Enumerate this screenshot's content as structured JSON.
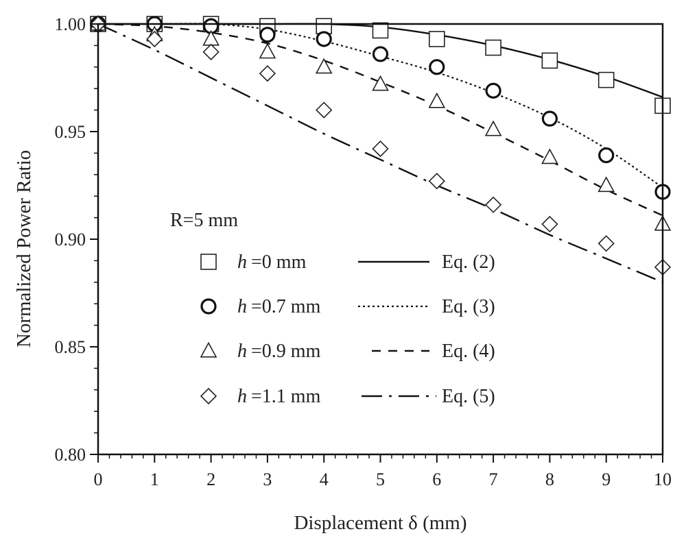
{
  "chart_data": {
    "type": "scatter",
    "xlabel": "Displacement δ (mm)",
    "ylabel": "Normalized Power Ratio",
    "xlim": [
      0,
      10
    ],
    "ylim": [
      0.8,
      1.0
    ],
    "x_ticks": [
      "0",
      "1",
      "2",
      "3",
      "4",
      "5",
      "6",
      "7",
      "8",
      "9",
      "10"
    ],
    "y_ticks": [
      "0.80",
      "0.85",
      "0.90",
      "0.95",
      "1.00"
    ],
    "grid": false,
    "legend_position": "lower-left inside",
    "legend_title": "R=5 mm",
    "x": [
      0,
      1,
      2,
      3,
      4,
      5,
      6,
      7,
      8,
      9,
      10
    ],
    "series": [
      {
        "marker": "square",
        "h_symbol": "h",
        "h_value": "=0 mm",
        "values": [
          1.0,
          1.0,
          1.0,
          0.999,
          0.999,
          0.997,
          0.993,
          0.989,
          0.983,
          0.974,
          0.962
        ],
        "fit_label": "Eq. (2)",
        "fit_style": "solid",
        "fit_values": [
          1.0,
          1.0,
          1.0,
          1.0,
          1.0,
          0.9986,
          0.995,
          0.99,
          0.9835,
          0.9755,
          0.966
        ]
      },
      {
        "marker": "circle",
        "h_symbol": "h",
        "h_value": "=0.7 mm",
        "values": [
          1.0,
          1.0,
          0.999,
          0.995,
          0.993,
          0.986,
          0.98,
          0.969,
          0.956,
          0.939,
          0.922
        ],
        "fit_label": "Eq. (3)",
        "fit_style": "dotted",
        "fit_values": [
          1.0,
          1.0,
          1.0,
          0.9975,
          0.992,
          0.985,
          0.9775,
          0.968,
          0.9565,
          0.942,
          0.924
        ]
      },
      {
        "marker": "triangle",
        "h_symbol": "h",
        "h_value": "=0.9 mm",
        "values": [
          1.0,
          0.995,
          0.993,
          0.987,
          0.98,
          0.972,
          0.964,
          0.951,
          0.938,
          0.925,
          0.907
        ],
        "fit_label": "Eq. (4)",
        "fit_style": "dashed",
        "fit_values": [
          1.0,
          0.999,
          0.996,
          0.991,
          0.983,
          0.973,
          0.962,
          0.9495,
          0.9365,
          0.923,
          0.911
        ]
      },
      {
        "marker": "diamond",
        "h_symbol": "h",
        "h_value": "=1.1 mm",
        "values": [
          1.0,
          0.993,
          0.987,
          0.977,
          0.96,
          0.942,
          0.927,
          0.916,
          0.907,
          0.898,
          0.887
        ],
        "fit_label": "Eq. (5)",
        "fit_style": "dash-dot",
        "fit_values": [
          1.0,
          0.988,
          0.975,
          0.962,
          0.949,
          0.937,
          0.925,
          0.914,
          0.902,
          0.891,
          0.88
        ]
      }
    ]
  }
}
